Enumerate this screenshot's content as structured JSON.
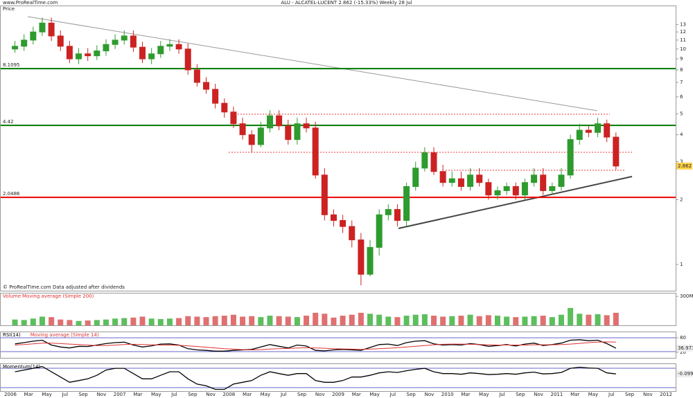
{
  "chart_data": [
    {
      "type": "candlestick",
      "title": "ALU - ALCATEL-LUCENT   2.862 (-15.33%)   Weekly  28 Jul",
      "source": "www.ProRealTime.com",
      "panel_label": "Price",
      "footnote": "© ProRealTime.com  Data adjusted after dividends",
      "log_scale": true,
      "up_color": "#2e9b2e",
      "down_color": "#cc2222",
      "categories": [
        "2006",
        null,
        "Mar",
        null,
        "May",
        null,
        "Jul",
        null,
        "Sep",
        null,
        "Nov",
        null,
        "2007",
        null,
        "Mar",
        null,
        "May",
        null,
        "Jul",
        null,
        "Sep",
        null,
        "Nov",
        null,
        "2008",
        null,
        "Mar",
        null,
        "May",
        null,
        "Jul",
        null,
        "Sep",
        null,
        "Nov",
        null,
        "2009",
        null,
        "Mar",
        null,
        "May",
        null,
        "Jul",
        null,
        "Sep",
        null,
        "Nov",
        null,
        "2010",
        null,
        "Mar",
        null,
        "May",
        null,
        "Jul",
        null,
        "Sep",
        null,
        "Nov",
        null,
        "2011",
        null,
        "Mar",
        null,
        "May",
        null,
        "Jul",
        null,
        "Sep",
        null,
        "Nov",
        null,
        "2012"
      ],
      "open": [
        10.0,
        10.3,
        11,
        12,
        13.2,
        11.5,
        10.3,
        9,
        9.5,
        9.3,
        9.8,
        10.5,
        11,
        11.5,
        10.2,
        9,
        9.5,
        10.3,
        10.5,
        10,
        8,
        7,
        6.5,
        5.6,
        5.1,
        4.5,
        4,
        3.6,
        4.3,
        4.9,
        4.4,
        3.8,
        4.5,
        4.3,
        2.6,
        1.7,
        1.6,
        1.5,
        1.3,
        0.9,
        1.2,
        1.7,
        1.8,
        1.6,
        2.3,
        2.8,
        3.3,
        2.7,
        2.4,
        2.5,
        2.3,
        2.6,
        2.4,
        2.1,
        2.2,
        2.3,
        2.1,
        2.4,
        2.6,
        2.2,
        2.3,
        2.6,
        3.8,
        4.2,
        4.1,
        4.5,
        3.9,
        null,
        null,
        null,
        null,
        null,
        null
      ],
      "high": [
        10.9,
        11.7,
        12.7,
        14,
        14,
        12.2,
        10.9,
        10.1,
        10.1,
        10.4,
        11.1,
        11.7,
        12.2,
        12.2,
        10.8,
        10.1,
        10.9,
        11.1,
        11.1,
        10.6,
        8.5,
        7.4,
        6.9,
        5.9,
        5.4,
        4.8,
        4.2,
        4.6,
        5.2,
        5.2,
        4.7,
        4.8,
        4.8,
        4.6,
        2.8,
        1.8,
        1.7,
        1.6,
        1.4,
        1.3,
        1.8,
        1.9,
        1.9,
        2.4,
        3,
        3.5,
        3.5,
        2.9,
        2.7,
        2.7,
        2.8,
        2.8,
        2.5,
        2.3,
        2.4,
        2.4,
        2.5,
        2.8,
        2.8,
        2.4,
        2.8,
        4,
        4.5,
        4.4,
        4.8,
        4.7,
        4.1,
        null,
        null,
        null,
        null,
        null,
        null
      ],
      "low": [
        9.6,
        9.8,
        10.5,
        11.5,
        10.9,
        9.8,
        8.6,
        8.5,
        8.8,
        8.9,
        9.3,
        10,
        10.5,
        9.7,
        8.6,
        8.5,
        9.1,
        9.8,
        9.5,
        7.6,
        6.7,
        6.2,
        5.3,
        4.8,
        4.3,
        3.8,
        3.3,
        3.5,
        4.1,
        4.2,
        3.6,
        3.6,
        4.1,
        2.5,
        1.6,
        1.5,
        1.4,
        1.2,
        0.8,
        0.88,
        1.1,
        1.6,
        1.5,
        1.5,
        2.2,
        2.7,
        2.6,
        2.3,
        2.3,
        2.2,
        2.2,
        2.3,
        2.0,
        2.0,
        2.1,
        2.0,
        2.0,
        2.3,
        2.1,
        2.1,
        2.2,
        2.5,
        3.6,
        3.9,
        3.9,
        3.7,
        2.75,
        null,
        null,
        null,
        null,
        null,
        null
      ],
      "close": [
        10.3,
        11,
        12,
        13.2,
        11.5,
        10.3,
        9,
        9.5,
        9.3,
        9.8,
        10.5,
        11,
        11.5,
        10.2,
        9,
        9.5,
        10.3,
        10.5,
        10,
        8,
        7,
        6.5,
        5.6,
        5.1,
        4.5,
        4,
        3.6,
        4.3,
        4.9,
        4.4,
        3.8,
        4.5,
        4.3,
        2.6,
        1.7,
        1.6,
        1.5,
        1.3,
        0.9,
        1.2,
        1.7,
        1.8,
        1.6,
        2.3,
        2.8,
        3.3,
        2.7,
        2.4,
        2.5,
        2.3,
        2.6,
        2.4,
        2.1,
        2.2,
        2.3,
        2.1,
        2.4,
        2.6,
        2.2,
        2.3,
        2.6,
        3.8,
        4.2,
        4.1,
        4.5,
        3.9,
        2.862,
        null,
        null,
        null,
        null,
        null,
        null
      ],
      "levels": [
        {
          "value": 8.1095,
          "color": "#007a00"
        },
        {
          "value": 4.42,
          "color": "#007a00"
        },
        {
          "value": 2.0486,
          "color": "#ee0000"
        }
      ],
      "ylim": [
        0.755,
        15.8
      ],
      "yticks": [
        1,
        2,
        3,
        4,
        5,
        6,
        7,
        8,
        9,
        10,
        11,
        12,
        13
      ]
    },
    {
      "type": "bar",
      "title": "Volume",
      "subtitle": "Moving average (Simple 200)",
      "values": [
        60,
        55,
        70,
        90,
        85,
        60,
        55,
        45,
        50,
        55,
        60,
        70,
        75,
        80,
        90,
        70,
        65,
        70,
        75,
        95,
        90,
        85,
        95,
        100,
        110,
        90,
        95,
        85,
        100,
        95,
        90,
        85,
        100,
        130,
        120,
        80,
        100,
        110,
        130,
        120,
        110,
        90,
        85,
        100,
        110,
        115,
        100,
        90,
        95,
        100,
        110,
        95,
        105,
        100,
        90,
        85,
        90,
        95,
        100,
        85,
        110,
        180,
        120,
        110,
        115,
        105,
        130,
        null,
        null,
        null,
        null,
        null,
        null
      ],
      "ylim": [
        0,
        330
      ],
      "yticks": [
        {
          "value": 300,
          "label": "300M"
        }
      ]
    },
    {
      "type": "line",
      "ylim": [
        0,
        100
      ],
      "yticks": [
        80,
        20
      ],
      "series": [
        {
          "name": "RSI(14)",
          "color": "#000000",
          "values": [
            55,
            60,
            66,
            70,
            50,
            42,
            38,
            45,
            44,
            50,
            56,
            60,
            62,
            50,
            42,
            47,
            54,
            55,
            50,
            35,
            30,
            28,
            25,
            25,
            28,
            30,
            32,
            42,
            52,
            45,
            38,
            50,
            46,
            28,
            26,
            30,
            32,
            30,
            28,
            40,
            52,
            54,
            48,
            60,
            66,
            68,
            55,
            50,
            52,
            50,
            56,
            52,
            45,
            48,
            52,
            46,
            54,
            58,
            48,
            52,
            58,
            70,
            72,
            68,
            70,
            56,
            36.973,
            null,
            null,
            null,
            null,
            null,
            null
          ]
        },
        {
          "name": "Moving average (Simple 14)",
          "color": "#e03030",
          "values": [
            50,
            52,
            55,
            58,
            58,
            56,
            54,
            52,
            50,
            48,
            48,
            50,
            52,
            53,
            52,
            51,
            50,
            50,
            49,
            47,
            44,
            41,
            38,
            35,
            33,
            31,
            30,
            31,
            33,
            35,
            36,
            38,
            39,
            38,
            37,
            35,
            34,
            33,
            32,
            33,
            35,
            37,
            39,
            42,
            45,
            48,
            51,
            53,
            54,
            54,
            53,
            52,
            51,
            50,
            50,
            50,
            50,
            51,
            51,
            51,
            52,
            54,
            57,
            60,
            62,
            63,
            62,
            null,
            null,
            null,
            null,
            null,
            null
          ]
        }
      ]
    },
    {
      "type": "line",
      "ylim": [
        -5,
        2.5
      ],
      "series": [
        {
          "name": "Momentum(14)",
          "color": "#000000",
          "values": [
            0.5,
            1,
            1.5,
            2,
            0.5,
            -1,
            -2.5,
            -2,
            -1.5,
            -0.5,
            1,
            1.5,
            1.5,
            0,
            -1.5,
            -1.5,
            -0.5,
            0.5,
            0.5,
            -1.5,
            -3,
            -3.5,
            -4.5,
            -4.5,
            -3,
            -2.5,
            -2,
            -0.5,
            0.5,
            0,
            -0.5,
            0,
            0,
            -2,
            -2.5,
            -2.5,
            -2,
            -1,
            -1,
            -0.5,
            0.2,
            0.5,
            0.3,
            0.8,
            1.2,
            1.5,
            0.5,
            0,
            0,
            -0.2,
            0.2,
            0,
            -0.3,
            -0.2,
            0,
            -0.2,
            0.2,
            0.4,
            -0.1,
            0,
            0.3,
            1.5,
            1.8,
            1.6,
            1.5,
            0.2,
            -0.099,
            null,
            null,
            null,
            null,
            null,
            null
          ]
        }
      ]
    }
  ]
}
